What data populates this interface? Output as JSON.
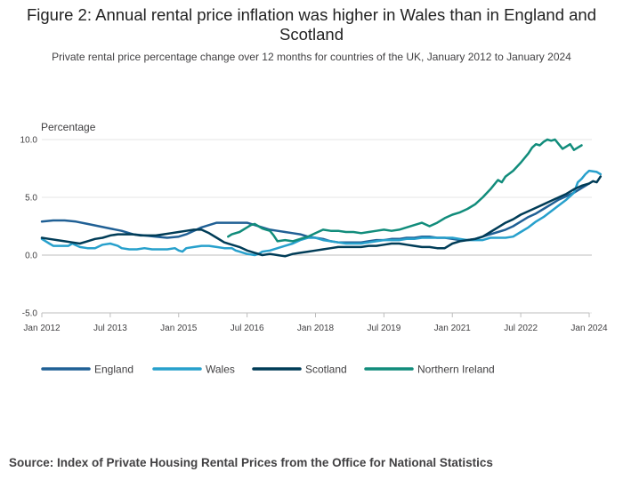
{
  "title": "Figure 2: Annual rental price inflation was higher in Wales than in England and Scotland",
  "subtitle": "Private rental price percentage change over 12 months for countries of the UK, January 2012 to January 2024",
  "source": "Source: Index of Private Housing Rental Prices from the Office for National Statistics",
  "chart_data": {
    "type": "line",
    "ylabel": "Percentage",
    "ylim": [
      -5,
      10
    ],
    "yticks": [
      -5,
      0,
      5,
      10
    ],
    "ytick_labels": [
      "-5.0",
      "0.0",
      "5.0",
      "10.0"
    ],
    "x_start": "Jan 2012",
    "x_end": "Jan 2024",
    "xticks": [
      0,
      18,
      36,
      54,
      72,
      90,
      108,
      126,
      144
    ],
    "xtick_labels": [
      "Jan 2012",
      "Jul 2013",
      "Jan 2015",
      "Jul 2016",
      "Jan 2018",
      "Jul 2019",
      "Jan 2021",
      "Jul 2022",
      "Jan 2024"
    ],
    "grid": true,
    "legend_position": "bottom",
    "series": [
      {
        "name": "England",
        "color": "#206095",
        "points": [
          [
            0,
            2.9
          ],
          [
            3,
            3.0
          ],
          [
            6,
            3.0
          ],
          [
            9,
            2.9
          ],
          [
            12,
            2.7
          ],
          [
            15,
            2.5
          ],
          [
            18,
            2.3
          ],
          [
            21,
            2.1
          ],
          [
            24,
            1.8
          ],
          [
            27,
            1.7
          ],
          [
            30,
            1.6
          ],
          [
            33,
            1.5
          ],
          [
            36,
            1.6
          ],
          [
            38,
            1.8
          ],
          [
            40,
            2.1
          ],
          [
            42,
            2.4
          ],
          [
            44,
            2.6
          ],
          [
            46,
            2.8
          ],
          [
            48,
            2.8
          ],
          [
            51,
            2.8
          ],
          [
            54,
            2.8
          ],
          [
            56,
            2.6
          ],
          [
            58,
            2.4
          ],
          [
            60,
            2.2
          ],
          [
            62,
            2.1
          ],
          [
            64,
            2.0
          ],
          [
            66,
            1.9
          ],
          [
            68,
            1.8
          ],
          [
            70,
            1.6
          ],
          [
            72,
            1.5
          ],
          [
            74,
            1.4
          ],
          [
            76,
            1.2
          ],
          [
            78,
            1.1
          ],
          [
            80,
            1.1
          ],
          [
            82,
            1.1
          ],
          [
            84,
            1.1
          ],
          [
            86,
            1.2
          ],
          [
            88,
            1.3
          ],
          [
            90,
            1.3
          ],
          [
            92,
            1.4
          ],
          [
            94,
            1.4
          ],
          [
            96,
            1.5
          ],
          [
            98,
            1.5
          ],
          [
            100,
            1.6
          ],
          [
            102,
            1.6
          ],
          [
            104,
            1.5
          ],
          [
            106,
            1.5
          ],
          [
            108,
            1.4
          ],
          [
            110,
            1.3
          ],
          [
            112,
            1.3
          ],
          [
            114,
            1.4
          ],
          [
            116,
            1.6
          ],
          [
            118,
            1.8
          ],
          [
            120,
            2.0
          ],
          [
            122,
            2.2
          ],
          [
            124,
            2.5
          ],
          [
            126,
            2.9
          ],
          [
            128,
            3.3
          ],
          [
            130,
            3.6
          ],
          [
            132,
            4.0
          ],
          [
            134,
            4.4
          ],
          [
            136,
            4.8
          ],
          [
            138,
            5.1
          ],
          [
            140,
            5.4
          ],
          [
            142,
            5.8
          ],
          [
            144,
            6.2
          ]
        ]
      },
      {
        "name": "Wales",
        "color": "#27a0cc",
        "points": [
          [
            0,
            1.4
          ],
          [
            1,
            1.2
          ],
          [
            2,
            1.0
          ],
          [
            3,
            0.8
          ],
          [
            5,
            0.8
          ],
          [
            7,
            0.8
          ],
          [
            8,
            1.0
          ],
          [
            10,
            0.7
          ],
          [
            12,
            0.6
          ],
          [
            14,
            0.6
          ],
          [
            16,
            0.9
          ],
          [
            18,
            1.0
          ],
          [
            20,
            0.8
          ],
          [
            21,
            0.6
          ],
          [
            23,
            0.5
          ],
          [
            25,
            0.5
          ],
          [
            27,
            0.6
          ],
          [
            29,
            0.5
          ],
          [
            31,
            0.5
          ],
          [
            33,
            0.5
          ],
          [
            35,
            0.6
          ],
          [
            36,
            0.4
          ],
          [
            37,
            0.3
          ],
          [
            38,
            0.6
          ],
          [
            40,
            0.7
          ],
          [
            42,
            0.8
          ],
          [
            44,
            0.8
          ],
          [
            46,
            0.7
          ],
          [
            48,
            0.6
          ],
          [
            50,
            0.6
          ],
          [
            51,
            0.4
          ],
          [
            52,
            0.3
          ],
          [
            53,
            0.2
          ],
          [
            54,
            0.1
          ],
          [
            56,
            0.0
          ],
          [
            57,
            0.1
          ],
          [
            58,
            0.3
          ],
          [
            60,
            0.4
          ],
          [
            62,
            0.6
          ],
          [
            64,
            0.8
          ],
          [
            66,
            1.0
          ],
          [
            68,
            1.3
          ],
          [
            70,
            1.5
          ],
          [
            72,
            1.5
          ],
          [
            74,
            1.3
          ],
          [
            76,
            1.2
          ],
          [
            78,
            1.1
          ],
          [
            80,
            1.0
          ],
          [
            82,
            1.0
          ],
          [
            84,
            1.0
          ],
          [
            86,
            1.1
          ],
          [
            88,
            1.2
          ],
          [
            90,
            1.3
          ],
          [
            92,
            1.3
          ],
          [
            94,
            1.3
          ],
          [
            96,
            1.4
          ],
          [
            98,
            1.4
          ],
          [
            100,
            1.5
          ],
          [
            102,
            1.5
          ],
          [
            104,
            1.5
          ],
          [
            106,
            1.5
          ],
          [
            108,
            1.5
          ],
          [
            110,
            1.4
          ],
          [
            112,
            1.3
          ],
          [
            114,
            1.3
          ],
          [
            116,
            1.3
          ],
          [
            118,
            1.5
          ],
          [
            120,
            1.5
          ],
          [
            122,
            1.5
          ],
          [
            124,
            1.6
          ],
          [
            126,
            2.0
          ],
          [
            128,
            2.4
          ],
          [
            130,
            2.9
          ],
          [
            132,
            3.3
          ],
          [
            134,
            3.8
          ],
          [
            136,
            4.3
          ],
          [
            138,
            4.8
          ],
          [
            140,
            5.4
          ],
          [
            141,
            6.3
          ],
          [
            142,
            6.6
          ],
          [
            143,
            7.0
          ],
          [
            144,
            7.3
          ],
          [
            146,
            7.2
          ],
          [
            147,
            7.0
          ]
        ]
      },
      {
        "name": "Scotland",
        "color": "#003c57",
        "points": [
          [
            0,
            1.5
          ],
          [
            2,
            1.4
          ],
          [
            4,
            1.3
          ],
          [
            6,
            1.2
          ],
          [
            8,
            1.1
          ],
          [
            10,
            1.0
          ],
          [
            12,
            1.2
          ],
          [
            14,
            1.4
          ],
          [
            16,
            1.5
          ],
          [
            18,
            1.7
          ],
          [
            20,
            1.8
          ],
          [
            22,
            1.8
          ],
          [
            24,
            1.8
          ],
          [
            26,
            1.7
          ],
          [
            28,
            1.7
          ],
          [
            30,
            1.7
          ],
          [
            32,
            1.8
          ],
          [
            34,
            1.9
          ],
          [
            36,
            2.0
          ],
          [
            38,
            2.1
          ],
          [
            40,
            2.2
          ],
          [
            42,
            2.2
          ],
          [
            44,
            1.9
          ],
          [
            46,
            1.5
          ],
          [
            48,
            1.1
          ],
          [
            50,
            0.9
          ],
          [
            52,
            0.7
          ],
          [
            54,
            0.4
          ],
          [
            56,
            0.2
          ],
          [
            58,
            0.0
          ],
          [
            60,
            0.1
          ],
          [
            62,
            0.0
          ],
          [
            64,
            -0.1
          ],
          [
            66,
            0.1
          ],
          [
            68,
            0.2
          ],
          [
            70,
            0.3
          ],
          [
            72,
            0.4
          ],
          [
            74,
            0.5
          ],
          [
            76,
            0.6
          ],
          [
            78,
            0.7
          ],
          [
            80,
            0.7
          ],
          [
            82,
            0.7
          ],
          [
            84,
            0.7
          ],
          [
            86,
            0.8
          ],
          [
            88,
            0.8
          ],
          [
            90,
            0.9
          ],
          [
            92,
            1.0
          ],
          [
            94,
            1.0
          ],
          [
            96,
            0.9
          ],
          [
            98,
            0.8
          ],
          [
            100,
            0.7
          ],
          [
            102,
            0.7
          ],
          [
            104,
            0.6
          ],
          [
            106,
            0.6
          ],
          [
            108,
            1.0
          ],
          [
            110,
            1.2
          ],
          [
            112,
            1.3
          ],
          [
            114,
            1.4
          ],
          [
            116,
            1.6
          ],
          [
            118,
            2.0
          ],
          [
            120,
            2.4
          ],
          [
            122,
            2.8
          ],
          [
            124,
            3.1
          ],
          [
            126,
            3.5
          ],
          [
            128,
            3.8
          ],
          [
            130,
            4.1
          ],
          [
            132,
            4.4
          ],
          [
            134,
            4.7
          ],
          [
            136,
            5.0
          ],
          [
            138,
            5.3
          ],
          [
            140,
            5.7
          ],
          [
            142,
            6.0
          ],
          [
            143,
            6.1
          ],
          [
            144,
            6.2
          ],
          [
            145,
            6.4
          ],
          [
            146,
            6.3
          ],
          [
            147,
            6.8
          ]
        ]
      },
      {
        "name": "Northern Ireland",
        "color": "#118c7b",
        "points": [
          [
            49,
            1.6
          ],
          [
            50,
            1.8
          ],
          [
            52,
            2.0
          ],
          [
            54,
            2.4
          ],
          [
            55,
            2.6
          ],
          [
            56,
            2.7
          ],
          [
            57,
            2.5
          ],
          [
            58,
            2.3
          ],
          [
            59,
            2.2
          ],
          [
            60,
            2.1
          ],
          [
            61,
            1.7
          ],
          [
            62,
            1.2
          ],
          [
            64,
            1.3
          ],
          [
            66,
            1.2
          ],
          [
            68,
            1.4
          ],
          [
            70,
            1.6
          ],
          [
            72,
            1.9
          ],
          [
            74,
            2.2
          ],
          [
            76,
            2.1
          ],
          [
            78,
            2.1
          ],
          [
            80,
            2.0
          ],
          [
            82,
            2.0
          ],
          [
            84,
            1.9
          ],
          [
            86,
            2.0
          ],
          [
            88,
            2.1
          ],
          [
            90,
            2.2
          ],
          [
            92,
            2.1
          ],
          [
            94,
            2.2
          ],
          [
            96,
            2.4
          ],
          [
            98,
            2.6
          ],
          [
            100,
            2.8
          ],
          [
            102,
            2.5
          ],
          [
            104,
            2.8
          ],
          [
            106,
            3.2
          ],
          [
            108,
            3.5
          ],
          [
            110,
            3.7
          ],
          [
            112,
            4.0
          ],
          [
            114,
            4.4
          ],
          [
            116,
            5.0
          ],
          [
            118,
            5.7
          ],
          [
            120,
            6.5
          ],
          [
            121,
            6.3
          ],
          [
            122,
            6.8
          ],
          [
            124,
            7.3
          ],
          [
            126,
            8.0
          ],
          [
            128,
            8.8
          ],
          [
            129,
            9.3
          ],
          [
            130,
            9.6
          ],
          [
            131,
            9.5
          ],
          [
            132,
            9.8
          ],
          [
            133,
            10.0
          ],
          [
            134,
            9.9
          ],
          [
            135,
            10.0
          ],
          [
            136,
            9.6
          ],
          [
            137,
            9.2
          ],
          [
            138,
            9.4
          ],
          [
            139,
            9.6
          ],
          [
            140,
            9.1
          ],
          [
            141,
            9.3
          ],
          [
            142,
            9.5
          ]
        ]
      }
    ]
  }
}
